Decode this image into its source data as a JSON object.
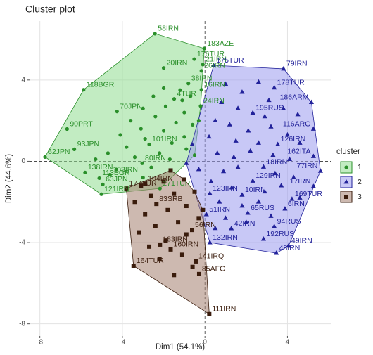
{
  "chart_data": {
    "type": "scatter",
    "title": "Cluster plot",
    "x_label": "Dim1 (54.1%)",
    "y_label": "Dim2 (44.6%)",
    "xlim": [
      -8.5,
      6.1
    ],
    "ylim": [
      -8.6,
      6.9
    ],
    "xticks": [
      -8,
      -4,
      0,
      4
    ],
    "yticks": [
      -8,
      -4,
      0,
      4
    ],
    "grid": true,
    "legend_title": "cluster",
    "legend_position": "right",
    "series": [
      {
        "name": "1",
        "color": "#2a8f2a",
        "hull_color": "#8fdc8f",
        "shape": "circle",
        "x": [
          -2.42,
          -0.03,
          -0.52,
          -0.1,
          -2.0,
          -0.17,
          -0.8,
          -5.88,
          -0.17,
          -1.49,
          -0.21,
          -4.26,
          -6.68,
          -2.7,
          -6.33,
          -3.04,
          -7.75,
          -5.81,
          -5.12,
          -4.6,
          -4.95,
          -2.18,
          -5.02,
          -2.0,
          -2.5,
          -1.2,
          -0.7,
          -3.0,
          -1.9,
          -1.0,
          -2.4,
          -3.6,
          -1.4,
          -0.6,
          -3.1,
          -2.0,
          -4.1,
          -1.0,
          -2.9,
          -1.6,
          -3.8,
          -0.9,
          -2.2,
          -4.7,
          -3.4,
          -1.7,
          -5.3,
          -2.6,
          -4.3,
          -0.5,
          -3.0,
          -1.1,
          -0.3
        ],
        "y": [
          6.28,
          5.55,
          5.03,
          4.76,
          4.59,
          4.45,
          3.83,
          3.52,
          3.52,
          3.07,
          2.72,
          2.45,
          1.59,
          0.83,
          0.59,
          -0.1,
          0.21,
          -0.55,
          -0.83,
          -0.66,
          -1.14,
          -1.34,
          -1.62,
          3.6,
          3.2,
          3.5,
          3.2,
          2.6,
          2.7,
          2.4,
          2.2,
          2.0,
          1.9,
          1.8,
          1.6,
          1.5,
          1.3,
          1.2,
          1.1,
          0.9,
          0.7,
          0.6,
          0.4,
          0.4,
          0.2,
          0.1,
          0.1,
          -0.3,
          -0.4,
          0.3,
          -0.8,
          3.0,
          2.0
        ],
        "labels": [
          "58IRN",
          "183AZE",
          "176TUR",
          "21IRN",
          "20IRN",
          "26IRN",
          "38IRN",
          "118BGR",
          "16IRN",
          "4TUR",
          "24IRN",
          "70JPN",
          "90PRT",
          "101IRN",
          "93JPN",
          "80IRN",
          "62JPN",
          "138IRN",
          "113BGR",
          "103IRN",
          "63JPN",
          "171TUR",
          "121IRN",
          null,
          null,
          null,
          null,
          null,
          null,
          null,
          null,
          null,
          null,
          null,
          null,
          null,
          null,
          null,
          null,
          null,
          null,
          null,
          null,
          null,
          null,
          null,
          null,
          null,
          null,
          null,
          null,
          null,
          null
        ]
      },
      {
        "name": "2",
        "color": "#22229a",
        "hull_color": "#9a9aee",
        "shape": "triangle",
        "x": [
          0.42,
          3.81,
          3.36,
          5.16,
          2.32,
          5.26,
          3.53,
          5.26,
          2.84,
          5.6,
          2.32,
          5.26,
          1.8,
          4.22,
          3.88,
          2.08,
          0.24,
          0.07,
          1.28,
          3.36,
          2.84,
          0.24,
          4.05,
          3.46,
          -0.62,
          -0.9,
          1.0,
          1.8,
          2.6,
          3.1,
          0.8,
          1.6,
          2.9,
          3.8,
          4.5,
          0.5,
          1.2,
          2.1,
          3.2,
          4.0,
          0.2,
          1.5,
          2.6,
          4.6,
          0.6,
          1.4,
          2.2,
          3.3,
          4.1,
          -0.3,
          0.9,
          1.6,
          3.4,
          4.3,
          0.3,
          1.3,
          2.9,
          3.7,
          0.7,
          1.8,
          2.6,
          3.2,
          1.0,
          4.6,
          2.0,
          0.5
        ],
        "y": [
          4.72,
          4.55,
          3.62,
          2.9,
          2.38,
          1.59,
          0.83,
          0.24,
          -0.28,
          -0.48,
          -0.97,
          -1.24,
          -1.66,
          -1.86,
          -2.34,
          -2.55,
          -1.59,
          -2.62,
          -3.31,
          -3.21,
          -3.83,
          -4.0,
          -4.17,
          -4.52,
          0.83,
          -0.1,
          3.8,
          3.4,
          3.9,
          3.0,
          2.9,
          2.6,
          2.2,
          2.6,
          2.3,
          2.0,
          1.8,
          1.5,
          1.7,
          1.3,
          1.2,
          1.0,
          0.9,
          0.9,
          0.4,
          0.2,
          0.5,
          0.3,
          0.1,
          -0.4,
          -0.5,
          -0.3,
          -0.6,
          -0.8,
          -1.0,
          -1.3,
          -1.5,
          -1.2,
          -2.0,
          -2.2,
          -2.0,
          -2.7,
          -2.8,
          -1.8,
          -3.0,
          -3.3
        ],
        "labels": [
          "175TUR",
          "79IRN",
          "178TUR",
          "186ARM",
          "195RUS",
          "116ARG",
          "126IRN",
          "162ITA",
          "18IRN",
          "77IRN",
          "129IRN",
          "17IRN",
          "10IRN",
          "169TUR",
          "6IRN",
          "65RUS",
          "123IRN",
          "51IRN",
          "42IRN",
          "94RUS",
          "192RUS",
          "132IRN",
          "49IRN",
          "48IRN",
          null,
          null,
          null,
          null,
          null,
          null,
          null,
          null,
          null,
          null,
          null,
          null,
          null,
          null,
          null,
          null,
          null,
          null,
          null,
          null,
          null,
          null,
          null,
          null,
          null,
          null,
          null,
          null,
          null,
          null,
          null,
          null,
          null,
          null,
          null,
          null,
          null,
          null,
          null,
          null,
          null,
          null
        ]
      },
      {
        "name": "3",
        "color": "#3a1c0c",
        "hull_color": "#a48070",
        "shape": "square",
        "x": [
          -3.81,
          -2.9,
          -2.35,
          -0.62,
          -2.18,
          -1.66,
          -3.46,
          -0.45,
          -0.28,
          0.21,
          -1.66,
          -0.1,
          -1.0,
          -2.0,
          -3.1,
          -0.5,
          -1.5,
          -2.6,
          -3.4,
          -0.9,
          -1.8,
          -2.9,
          -0.3,
          -1.3,
          -2.4,
          -3.2,
          -0.9,
          -1.9,
          -2.7,
          -1.1,
          -2.2,
          -0.6,
          -1.5
        ],
        "y": [
          -1.34,
          -1.1,
          -2.1,
          -3.38,
          -4.1,
          -4.34,
          -5.14,
          -4.93,
          -5.55,
          -7.52,
          -0.45,
          -2.4,
          -0.9,
          -1.0,
          -1.2,
          -1.5,
          -1.6,
          -1.7,
          -2.0,
          -2.2,
          -2.4,
          -2.6,
          -2.8,
          -3.0,
          -3.2,
          -3.5,
          -3.6,
          -3.9,
          -4.2,
          -4.6,
          -4.8,
          -5.2,
          -5.6
        ],
        "labels": [
          "177TUR",
          "104IRN",
          "83SRB",
          "56IRN",
          "183IRN",
          "160IRN",
          "164TUR",
          "141IRQ",
          "85AFG",
          "111IRN",
          null,
          null,
          null,
          null,
          null,
          null,
          null,
          null,
          null,
          null,
          null,
          null,
          null,
          null,
          null,
          null,
          null,
          null,
          null,
          null,
          null,
          null,
          null
        ]
      }
    ]
  }
}
